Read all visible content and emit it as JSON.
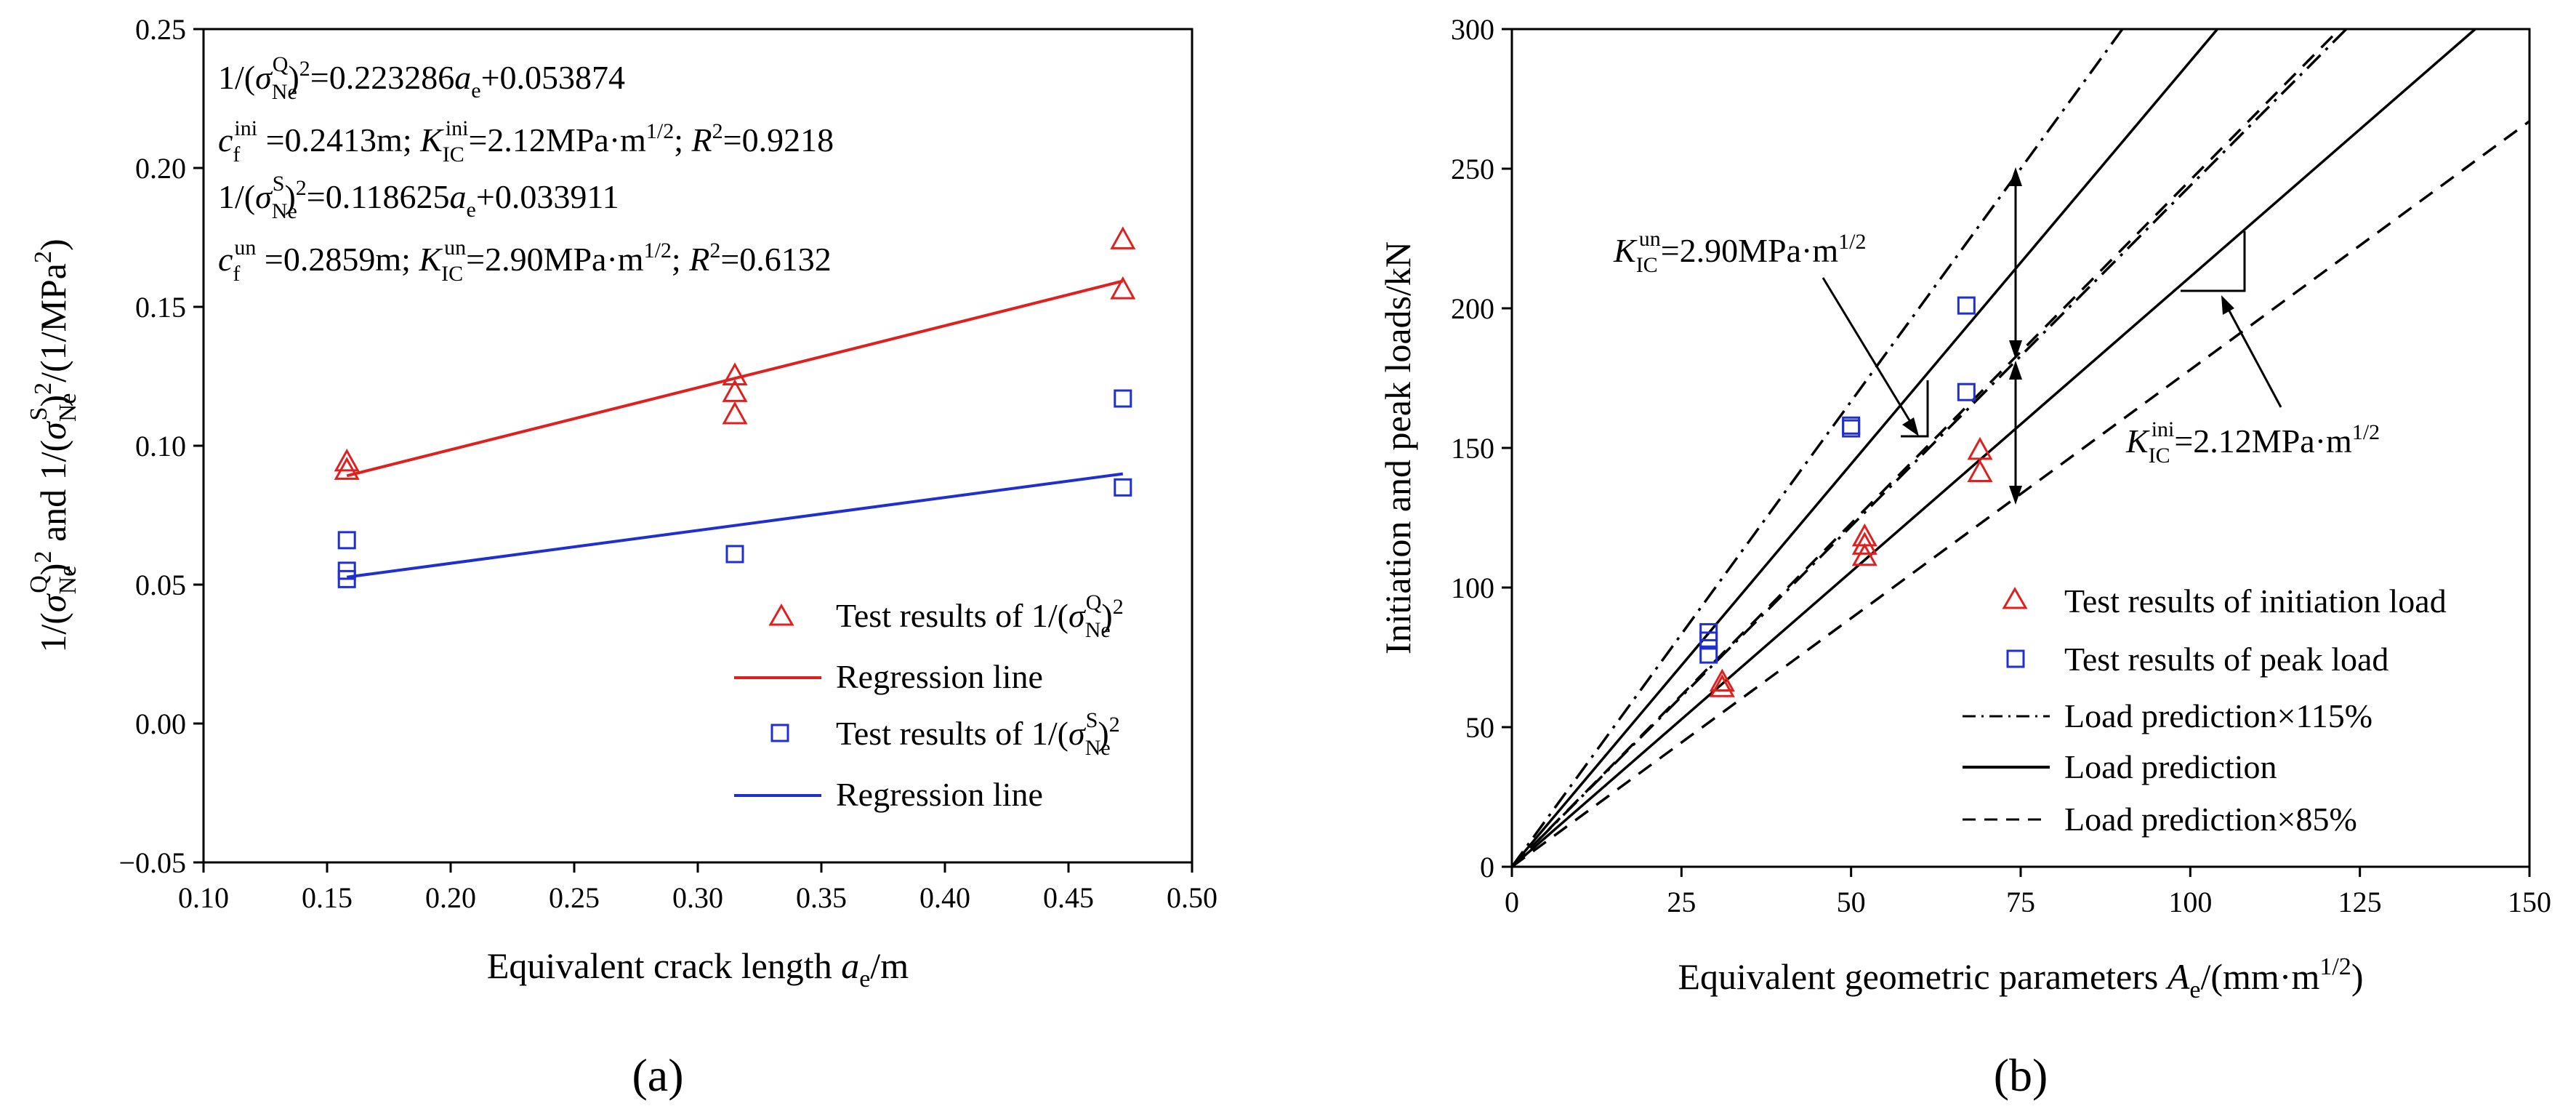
{
  "chart_data": [
    {
      "type": "scatter",
      "panel_label": "(a)",
      "xlabel": "Equivalent crack length a_e/m",
      "ylabel": "1/(σ_Ne^Q)^2 and 1/(σ_Ne^S)^2/(1/MPa^2)",
      "xlim": [
        0.1,
        0.5
      ],
      "ylim": [
        -0.05,
        0.25
      ],
      "xticks": [
        "0.10",
        "0.15",
        "0.20",
        "0.25",
        "0.30",
        "0.35",
        "0.40",
        "0.45",
        "0.50"
      ],
      "yticks": [
        "−0.05",
        "0.00",
        "0.05",
        "0.10",
        "0.15",
        "0.20",
        "0.25"
      ],
      "grid": false,
      "legend_position": "lower-right",
      "annotations": [
        "1/(σNeQ)² = 0.223286ae + 0.053874",
        "cfini = 0.2413m; KICini = 2.12MPa·m1/2; R² = 0.9218",
        "1/(σNeS)² = 0.118625ae + 0.033911",
        "cfun = 0.2859m; KICun = 2.90MPa·m1/2; R² = 0.6132"
      ],
      "series": [
        {
          "name": "Test results of 1/(σNeQ)²",
          "marker": "triangle",
          "color": "#e0201f",
          "points": [
            [
              0.158,
              0.094
            ],
            [
              0.158,
              0.091
            ],
            [
              0.315,
              0.125
            ],
            [
              0.315,
              0.119
            ],
            [
              0.315,
              0.111
            ],
            [
              0.472,
              0.174
            ],
            [
              0.472,
              0.156
            ]
          ]
        },
        {
          "name": "Regression line",
          "kind": "line",
          "color": "#e0201f",
          "points": [
            [
              0.158,
              0.0892
            ],
            [
              0.472,
              0.1593
            ]
          ]
        },
        {
          "name": "Test results of 1/(σNeS)²",
          "marker": "square",
          "color": "#1f2fd0",
          "points": [
            [
              0.158,
              0.066
            ],
            [
              0.158,
              0.055
            ],
            [
              0.158,
              0.052
            ],
            [
              0.315,
              0.061
            ],
            [
              0.472,
              0.117
            ],
            [
              0.472,
              0.085
            ]
          ]
        },
        {
          "name": "Regression line",
          "kind": "line",
          "color": "#1f2fd0",
          "points": [
            [
              0.158,
              0.0527
            ],
            [
              0.472,
              0.0899
            ]
          ]
        }
      ]
    },
    {
      "type": "scatter",
      "panel_label": "(b)",
      "xlabel": "Equivalent geometric parameters A_e/(mm·m^1/2)",
      "ylabel": "Initiation and peak loads/kN",
      "xlim": [
        0,
        150
      ],
      "ylim": [
        0,
        300
      ],
      "xticks": [
        "0",
        "25",
        "50",
        "75",
        "100",
        "125",
        "150"
      ],
      "yticks": [
        "0",
        "50",
        "100",
        "150",
        "200",
        "250",
        "300"
      ],
      "grid": false,
      "legend_position": "lower-right",
      "annotations": [
        "KICun = 2.90MPa·m1/2",
        "KICini = 2.12MPa·m1/2"
      ],
      "series": [
        {
          "name": "Test results of initiation load",
          "marker": "triangle",
          "color": "#e0201f",
          "points": [
            [
              31,
              66
            ],
            [
              31,
              64
            ],
            [
              52,
              118
            ],
            [
              52,
              115
            ],
            [
              52,
              111
            ],
            [
              69,
              149
            ],
            [
              69,
              141
            ]
          ]
        },
        {
          "name": "Test results of peak load",
          "marker": "square",
          "color": "#1f2fd0",
          "points": [
            [
              29,
              84
            ],
            [
              29,
              81
            ],
            [
              29,
              76
            ],
            [
              50,
              158
            ],
            [
              50,
              157
            ],
            [
              67,
              201
            ],
            [
              67,
              170
            ]
          ]
        },
        {
          "name": "Load prediction×115%",
          "kind": "line",
          "style": "dashdot",
          "color": "#000000",
          "lines": [
            {
              "k_label": "un",
              "points": [
                [
                  0,
                  0
                ],
                [
                  90,
                  300
                ]
              ]
            },
            {
              "k_label": "ini",
              "points": [
                [
                  0,
                  0
                ],
                [
                  123,
                  300
                ]
              ]
            }
          ]
        },
        {
          "name": "Load prediction",
          "kind": "line",
          "style": "solid",
          "color": "#000000",
          "lines": [
            {
              "k_label": "un",
              "points": [
                [
                  0,
                  0
                ],
                [
                  104,
                  300
                ]
              ]
            },
            {
              "k_label": "ini",
              "points": [
                [
                  0,
                  0
                ],
                [
                  142,
                  300
                ]
              ]
            }
          ]
        },
        {
          "name": "Load prediction×85%",
          "kind": "line",
          "style": "dashed",
          "color": "#000000",
          "lines": [
            {
              "k_label": "un",
              "points": [
                [
                  0,
                  0
                ],
                [
                  122,
                  300
                ]
              ]
            },
            {
              "k_label": "ini",
              "points": [
                [
                  0,
                  0
                ],
                [
                  150,
                  267
                ]
              ]
            }
          ]
        }
      ]
    }
  ],
  "panels": {
    "a": "(a)",
    "b": "(b)"
  },
  "legend_a": {
    "q_points": "Test results of 1/(σNeQ)²",
    "q_line": "Regression line",
    "s_points": "Test results of 1/(σNeS)²",
    "s_line": "Regression line"
  },
  "legend_b": {
    "ini": "Test results of initiation load",
    "peak": "Test results of peak load",
    "p115": "Load prediction×115%",
    "p100": "Load prediction",
    "p85": "Load prediction×85%"
  },
  "colors": {
    "red": "#e0201f",
    "blue": "#1f2fd0",
    "black": "#000000"
  }
}
